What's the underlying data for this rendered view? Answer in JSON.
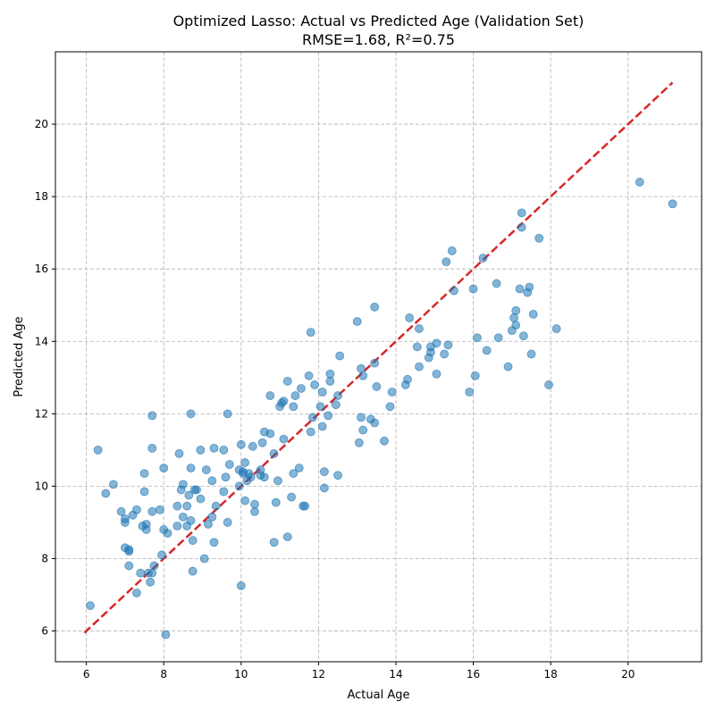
{
  "chart_data": {
    "type": "scatter",
    "title": "Optimized Lasso: Actual vs Predicted Age (Validation Set)",
    "subtitle": "RMSE=1.68, R²=0.75",
    "xlabel": "Actual Age",
    "ylabel": "Predicted Age",
    "xlim": [
      5.2,
      21.9
    ],
    "ylim": [
      5.15,
      22.0
    ],
    "xticks": [
      6,
      8,
      10,
      12,
      14,
      16,
      18,
      20
    ],
    "yticks": [
      6,
      8,
      10,
      12,
      14,
      16,
      18,
      20
    ],
    "grid": true,
    "colors": {
      "points": "#1f77b4",
      "reference_line": "#d62728",
      "grid": "#b0b0b0"
    },
    "reference_line": {
      "style": "dashed",
      "x": [
        5.95,
        21.15
      ],
      "y": [
        5.95,
        21.15
      ]
    },
    "points": [
      [
        6.1,
        6.7
      ],
      [
        6.3,
        11.0
      ],
      [
        6.5,
        9.8
      ],
      [
        6.7,
        10.05
      ],
      [
        6.9,
        9.3
      ],
      [
        7.0,
        9.1
      ],
      [
        7.0,
        9.0
      ],
      [
        7.0,
        8.3
      ],
      [
        7.1,
        8.25
      ],
      [
        7.1,
        8.2
      ],
      [
        7.1,
        7.8
      ],
      [
        7.2,
        9.2
      ],
      [
        7.3,
        9.35
      ],
      [
        7.3,
        7.05
      ],
      [
        7.4,
        7.6
      ],
      [
        7.45,
        8.9
      ],
      [
        7.5,
        9.85
      ],
      [
        7.5,
        10.35
      ],
      [
        7.55,
        8.95
      ],
      [
        7.55,
        8.8
      ],
      [
        7.6,
        7.6
      ],
      [
        7.65,
        7.35
      ],
      [
        7.7,
        7.6
      ],
      [
        7.7,
        9.3
      ],
      [
        7.7,
        11.05
      ],
      [
        7.7,
        11.95
      ],
      [
        7.75,
        7.8
      ],
      [
        7.9,
        9.35
      ],
      [
        7.95,
        8.1
      ],
      [
        8.0,
        10.5
      ],
      [
        8.0,
        8.8
      ],
      [
        8.05,
        5.9
      ],
      [
        8.1,
        8.7
      ],
      [
        8.35,
        8.9
      ],
      [
        8.35,
        9.45
      ],
      [
        8.4,
        10.9
      ],
      [
        8.45,
        9.9
      ],
      [
        8.5,
        10.05
      ],
      [
        8.5,
        9.15
      ],
      [
        8.6,
        8.9
      ],
      [
        8.6,
        9.45
      ],
      [
        8.65,
        9.75
      ],
      [
        8.7,
        10.5
      ],
      [
        8.7,
        12.0
      ],
      [
        8.7,
        9.05
      ],
      [
        8.75,
        8.5
      ],
      [
        8.75,
        7.65
      ],
      [
        8.8,
        9.9
      ],
      [
        8.85,
        9.9
      ],
      [
        8.95,
        11.0
      ],
      [
        8.95,
        9.65
      ],
      [
        9.05,
        8.0
      ],
      [
        9.1,
        10.45
      ],
      [
        9.15,
        8.95
      ],
      [
        9.25,
        10.15
      ],
      [
        9.25,
        9.15
      ],
      [
        9.3,
        8.45
      ],
      [
        9.3,
        11.05
      ],
      [
        9.35,
        9.45
      ],
      [
        9.55,
        9.85
      ],
      [
        9.55,
        11.0
      ],
      [
        9.6,
        10.25
      ],
      [
        9.65,
        9.0
      ],
      [
        9.65,
        12.0
      ],
      [
        9.7,
        10.6
      ],
      [
        9.95,
        10.0
      ],
      [
        9.95,
        10.45
      ],
      [
        10.0,
        7.25
      ],
      [
        10.0,
        11.15
      ],
      [
        10.05,
        10.35
      ],
      [
        10.05,
        10.4
      ],
      [
        10.1,
        9.6
      ],
      [
        10.1,
        10.65
      ],
      [
        10.15,
        10.15
      ],
      [
        10.2,
        10.35
      ],
      [
        10.25,
        10.25
      ],
      [
        10.3,
        11.1
      ],
      [
        10.35,
        9.5
      ],
      [
        10.35,
        9.3
      ],
      [
        10.5,
        10.3
      ],
      [
        10.5,
        10.45
      ],
      [
        10.55,
        11.2
      ],
      [
        10.6,
        10.25
      ],
      [
        10.6,
        11.5
      ],
      [
        10.75,
        12.5
      ],
      [
        10.75,
        11.45
      ],
      [
        10.85,
        10.9
      ],
      [
        10.85,
        8.45
      ],
      [
        10.9,
        9.55
      ],
      [
        10.95,
        10.15
      ],
      [
        11.0,
        12.2
      ],
      [
        11.05,
        12.3
      ],
      [
        11.1,
        12.35
      ],
      [
        11.1,
        11.3
      ],
      [
        11.2,
        8.6
      ],
      [
        11.2,
        12.9
      ],
      [
        11.3,
        9.7
      ],
      [
        11.35,
        10.35
      ],
      [
        11.35,
        12.2
      ],
      [
        11.4,
        12.5
      ],
      [
        11.5,
        10.5
      ],
      [
        11.55,
        12.7
      ],
      [
        11.6,
        9.45
      ],
      [
        11.65,
        9.45
      ],
      [
        11.75,
        13.05
      ],
      [
        11.8,
        14.25
      ],
      [
        11.8,
        11.5
      ],
      [
        11.85,
        11.9
      ],
      [
        11.9,
        12.8
      ],
      [
        12.05,
        12.2
      ],
      [
        12.1,
        12.6
      ],
      [
        12.1,
        11.65
      ],
      [
        12.15,
        10.4
      ],
      [
        12.15,
        9.95
      ],
      [
        12.25,
        11.95
      ],
      [
        12.3,
        13.1
      ],
      [
        12.3,
        12.9
      ],
      [
        12.45,
        12.25
      ],
      [
        12.5,
        10.3
      ],
      [
        12.5,
        12.5
      ],
      [
        12.55,
        13.6
      ],
      [
        13.0,
        14.55
      ],
      [
        13.05,
        11.2
      ],
      [
        13.1,
        11.9
      ],
      [
        13.1,
        13.25
      ],
      [
        13.15,
        11.55
      ],
      [
        13.15,
        13.05
      ],
      [
        13.35,
        11.85
      ],
      [
        13.45,
        11.75
      ],
      [
        13.45,
        13.4
      ],
      [
        13.45,
        14.95
      ],
      [
        13.5,
        12.75
      ],
      [
        13.7,
        11.25
      ],
      [
        13.85,
        12.2
      ],
      [
        13.9,
        12.6
      ],
      [
        14.25,
        12.8
      ],
      [
        14.3,
        12.95
      ],
      [
        14.35,
        14.65
      ],
      [
        14.55,
        13.85
      ],
      [
        14.6,
        13.3
      ],
      [
        14.6,
        14.35
      ],
      [
        14.85,
        13.55
      ],
      [
        14.9,
        13.7
      ],
      [
        14.9,
        13.85
      ],
      [
        15.05,
        13.1
      ],
      [
        15.05,
        13.95
      ],
      [
        15.25,
        13.65
      ],
      [
        15.3,
        16.2
      ],
      [
        15.35,
        13.9
      ],
      [
        15.45,
        16.5
      ],
      [
        15.5,
        15.4
      ],
      [
        15.9,
        12.6
      ],
      [
        16.0,
        15.45
      ],
      [
        16.05,
        13.05
      ],
      [
        16.1,
        14.1
      ],
      [
        16.25,
        16.3
      ],
      [
        16.35,
        13.75
      ],
      [
        16.6,
        15.6
      ],
      [
        16.65,
        14.1
      ],
      [
        16.9,
        13.3
      ],
      [
        17.0,
        14.3
      ],
      [
        17.05,
        14.65
      ],
      [
        17.1,
        14.85
      ],
      [
        17.1,
        14.45
      ],
      [
        17.2,
        15.45
      ],
      [
        17.25,
        17.55
      ],
      [
        17.25,
        17.15
      ],
      [
        17.3,
        14.15
      ],
      [
        17.4,
        15.35
      ],
      [
        17.45,
        15.5
      ],
      [
        17.5,
        13.65
      ],
      [
        17.55,
        14.75
      ],
      [
        17.7,
        16.85
      ],
      [
        17.95,
        12.8
      ],
      [
        18.15,
        14.35
      ],
      [
        20.3,
        18.4
      ],
      [
        21.15,
        17.8
      ]
    ]
  }
}
